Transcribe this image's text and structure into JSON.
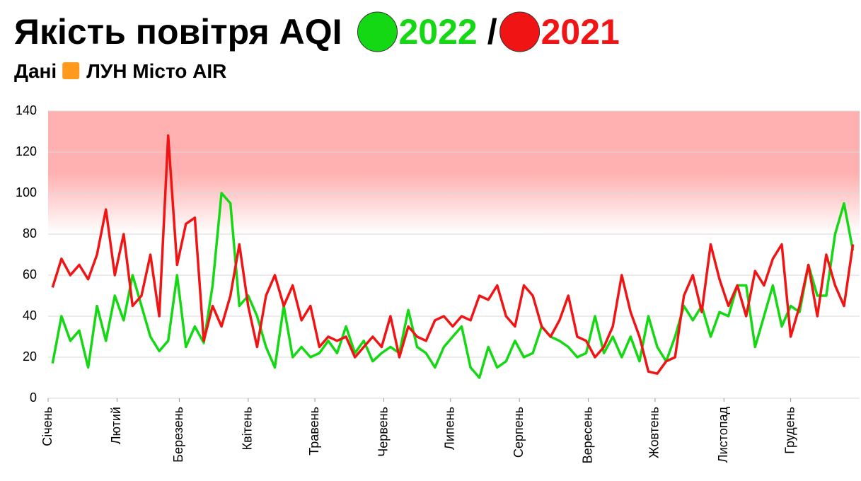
{
  "chart_data": {
    "type": "line",
    "title": "Якість повітря AQI",
    "title_separator": "/",
    "subtitle": "Дані",
    "source": "ЛУН Місто AIR",
    "x": [
      2,
      6,
      10,
      14,
      18,
      22,
      26,
      30,
      34,
      38,
      42,
      46,
      50,
      54,
      58,
      62,
      66,
      70,
      74,
      78,
      82,
      86,
      90,
      94,
      98,
      102,
      106,
      110,
      114,
      118,
      122,
      126,
      130,
      134,
      138,
      142,
      146,
      150,
      154,
      158,
      162,
      166,
      170,
      174,
      178,
      182,
      186,
      190,
      194,
      198,
      202,
      206,
      210,
      214,
      218,
      222,
      226,
      230,
      234,
      238,
      242,
      246,
      250,
      254,
      258,
      262,
      266,
      270,
      274,
      278,
      282,
      286,
      290,
      294,
      298,
      302,
      306,
      310,
      314,
      318,
      322,
      326,
      330,
      334,
      338,
      342,
      346,
      350,
      354,
      358,
      362
    ],
    "series": [
      {
        "name": "2022",
        "color": "#14d814",
        "values": [
          17,
          40,
          28,
          33,
          15,
          45,
          28,
          50,
          38,
          60,
          45,
          30,
          23,
          28,
          60,
          25,
          35,
          27,
          55,
          100,
          95,
          45,
          50,
          40,
          25,
          15,
          45,
          20,
          25,
          20,
          22,
          28,
          22,
          35,
          22,
          28,
          18,
          22,
          25,
          22,
          43,
          25,
          22,
          15,
          25,
          30,
          35,
          15,
          10,
          25,
          15,
          18,
          28,
          20,
          22,
          35,
          30,
          28,
          25,
          20,
          22,
          40,
          22,
          30,
          20,
          30,
          18,
          40,
          25,
          18,
          30,
          45,
          38,
          45,
          30,
          42,
          40,
          55,
          55,
          25,
          40,
          55,
          35,
          45,
          42,
          65,
          50,
          50,
          80,
          95,
          72
        ]
      },
      {
        "name": "2021",
        "color": "#f01414",
        "values": [
          54,
          68,
          60,
          65,
          58,
          70,
          92,
          60,
          80,
          45,
          50,
          70,
          40,
          128,
          65,
          85,
          88,
          28,
          45,
          35,
          50,
          75,
          45,
          25,
          50,
          60,
          45,
          55,
          38,
          45,
          25,
          30,
          28,
          30,
          20,
          25,
          30,
          25,
          40,
          20,
          35,
          30,
          28,
          38,
          40,
          35,
          40,
          38,
          50,
          48,
          55,
          40,
          35,
          55,
          50,
          35,
          30,
          38,
          50,
          30,
          28,
          20,
          25,
          35,
          60,
          42,
          30,
          13,
          12,
          18,
          20,
          50,
          60,
          42,
          75,
          58,
          45,
          55,
          40,
          62,
          55,
          68,
          75,
          30,
          45,
          65,
          40,
          70,
          55,
          45,
          75
        ]
      }
    ],
    "xlim": [
      0,
      365
    ],
    "xticks": [
      {
        "value": 0,
        "label": "Січень"
      },
      {
        "value": 31,
        "label": "Лютий"
      },
      {
        "value": 59,
        "label": "Березень"
      },
      {
        "value": 90,
        "label": "Квітень"
      },
      {
        "value": 120,
        "label": "Травень"
      },
      {
        "value": 151,
        "label": "Червень"
      },
      {
        "value": 181,
        "label": "Липень"
      },
      {
        "value": 212,
        "label": "Серпень"
      },
      {
        "value": 243,
        "label": "Вересень"
      },
      {
        "value": 273,
        "label": "Жовтень"
      },
      {
        "value": 304,
        "label": "Листопад"
      },
      {
        "value": 334,
        "label": "Грудень"
      }
    ],
    "ylim": [
      0,
      140
    ],
    "yticks": [
      0,
      20,
      40,
      60,
      80,
      100,
      120,
      140
    ],
    "grid": true,
    "band": {
      "from": 80,
      "to": 140,
      "color": "#ffb0b0"
    }
  }
}
